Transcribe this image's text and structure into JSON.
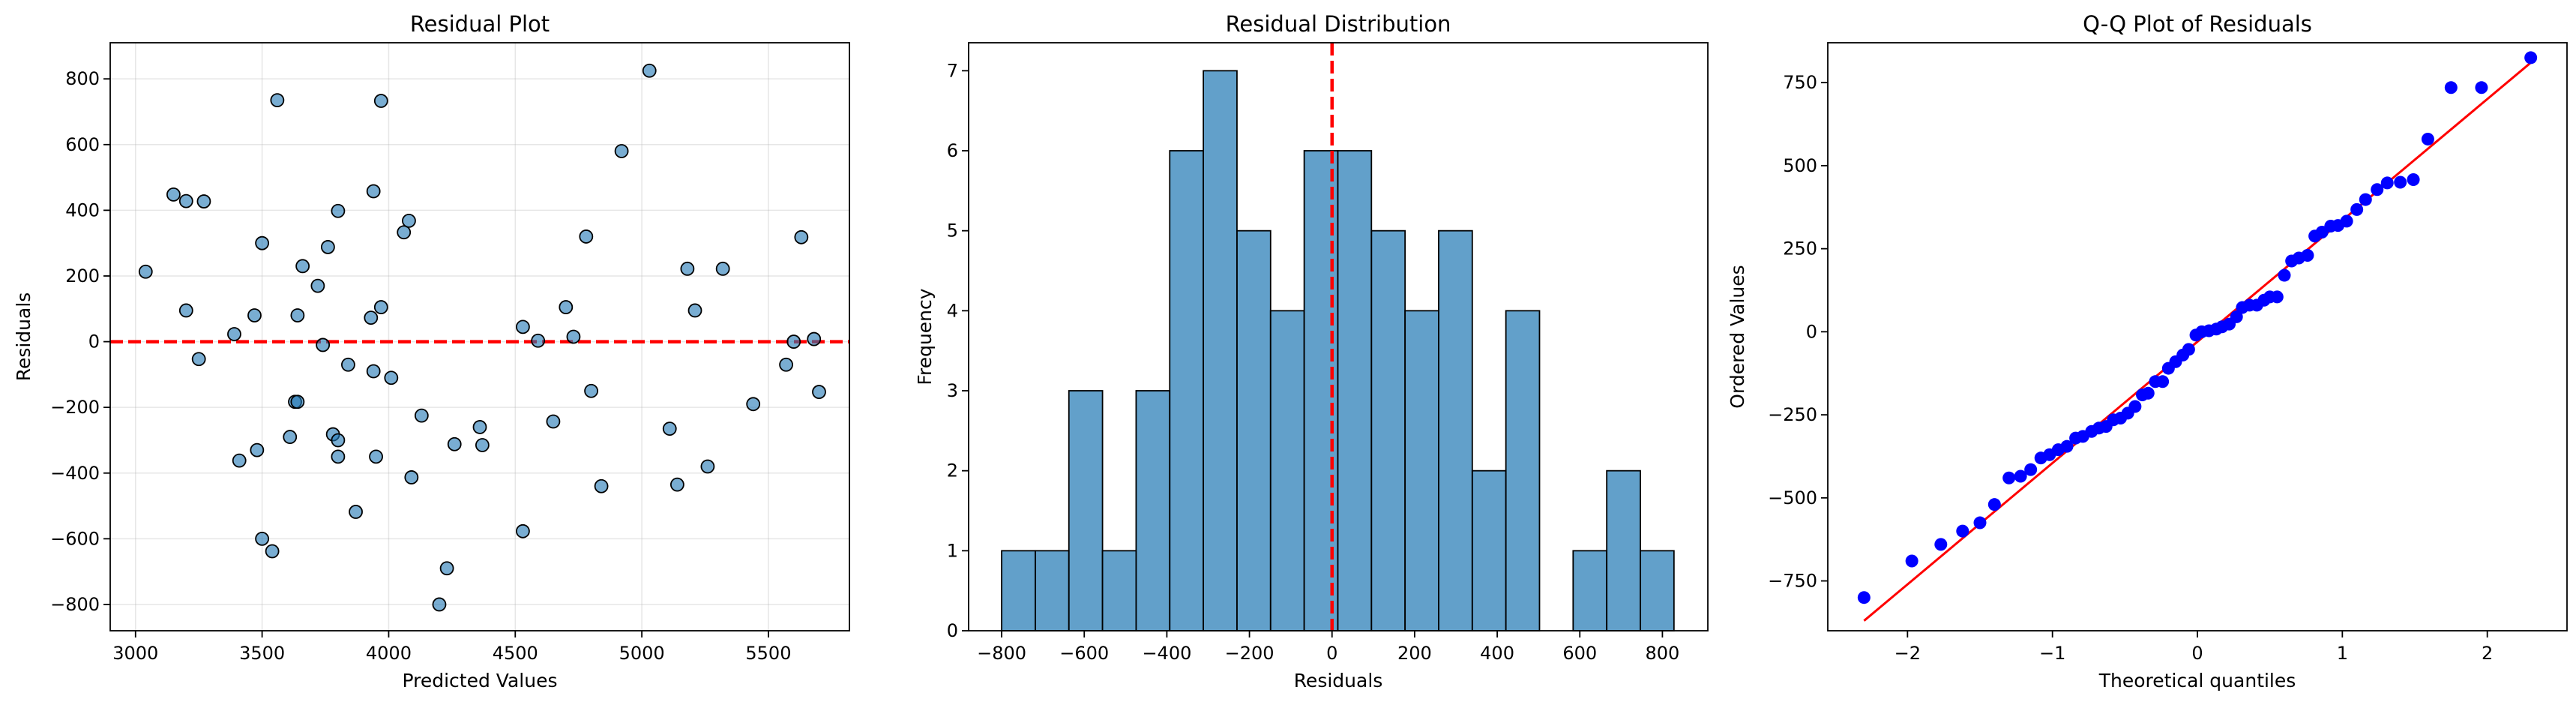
{
  "figure": {
    "background": "#ffffff",
    "point_color": "#1f77b4",
    "bar_color": "#1f77b4",
    "ref_color": "#ff0000",
    "qq_point_color": "#0000ff"
  },
  "chart_data": [
    {
      "type": "scatter",
      "title": "Residual Plot",
      "xlabel": "Predicted Values",
      "ylabel": "Residuals",
      "xlim": [
        2900,
        5820
      ],
      "ylim": [
        -880,
        910
      ],
      "xticks": [
        3000,
        3500,
        4000,
        4500,
        5000,
        5500
      ],
      "yticks": [
        -800,
        -600,
        -400,
        -200,
        0,
        200,
        400,
        600,
        800
      ],
      "grid": true,
      "reference_line": {
        "y": 0,
        "style": "dashed",
        "color": "#ff0000"
      },
      "points": [
        [
          3040,
          213
        ],
        [
          3150,
          448
        ],
        [
          3200,
          428
        ],
        [
          3200,
          95
        ],
        [
          3250,
          -53
        ],
        [
          3270,
          427
        ],
        [
          3390,
          23
        ],
        [
          3410,
          -362
        ],
        [
          3470,
          80
        ],
        [
          3480,
          -330
        ],
        [
          3500,
          300
        ],
        [
          3500,
          -600
        ],
        [
          3540,
          -638
        ],
        [
          3560,
          735
        ],
        [
          3610,
          -290
        ],
        [
          3630,
          -183
        ],
        [
          3640,
          -183
        ],
        [
          3640,
          80
        ],
        [
          3660,
          230
        ],
        [
          3720,
          170
        ],
        [
          3740,
          -10
        ],
        [
          3760,
          288
        ],
        [
          3780,
          -282
        ],
        [
          3800,
          -300
        ],
        [
          3800,
          -350
        ],
        [
          3800,
          398
        ],
        [
          3840,
          -70
        ],
        [
          3870,
          -518
        ],
        [
          3930,
          73
        ],
        [
          3940,
          458
        ],
        [
          3940,
          -90
        ],
        [
          3950,
          -350
        ],
        [
          3970,
          733
        ],
        [
          3970,
          105
        ],
        [
          4010,
          -110
        ],
        [
          4060,
          333
        ],
        [
          4080,
          368
        ],
        [
          4090,
          -413
        ],
        [
          4130,
          -225
        ],
        [
          4200,
          -800
        ],
        [
          4230,
          -690
        ],
        [
          4260,
          -312
        ],
        [
          4360,
          -260
        ],
        [
          4370,
          -315
        ],
        [
          4530,
          45
        ],
        [
          4530,
          -577
        ],
        [
          4590,
          3
        ],
        [
          4650,
          -243
        ],
        [
          4700,
          105
        ],
        [
          4730,
          15
        ],
        [
          4780,
          320
        ],
        [
          4800,
          -150
        ],
        [
          4840,
          -440
        ],
        [
          4920,
          580
        ],
        [
          5030,
          825
        ],
        [
          5110,
          -265
        ],
        [
          5140,
          -435
        ],
        [
          5180,
          222
        ],
        [
          5210,
          95
        ],
        [
          5260,
          -380
        ],
        [
          5320,
          222
        ],
        [
          5440,
          -190
        ],
        [
          5570,
          -70
        ],
        [
          5600,
          0
        ],
        [
          5630,
          318
        ],
        [
          5680,
          8
        ],
        [
          5700,
          -153
        ]
      ]
    },
    {
      "type": "bar",
      "title": "Residual Distribution",
      "xlabel": "Residuals",
      "ylabel": "Frequency",
      "xlim": [
        -880,
        910
      ],
      "ylim": [
        0,
        7.35
      ],
      "xticks": [
        -800,
        -600,
        -400,
        -200,
        0,
        200,
        400,
        600,
        800
      ],
      "yticks": [
        0,
        1,
        2,
        3,
        4,
        5,
        6,
        7
      ],
      "reference_line": {
        "x": 0,
        "style": "dashed",
        "color": "#ff0000"
      },
      "bins": [
        {
          "start": -800,
          "end": -718.6,
          "count": 1
        },
        {
          "start": -718.6,
          "end": -637.2,
          "count": 1
        },
        {
          "start": -637.2,
          "end": -555.8,
          "count": 3
        },
        {
          "start": -555.8,
          "end": -474.4,
          "count": 1
        },
        {
          "start": -474.4,
          "end": -393,
          "count": 3
        },
        {
          "start": -393,
          "end": -311.6,
          "count": 6
        },
        {
          "start": -311.6,
          "end": -230.2,
          "count": 7
        },
        {
          "start": -230.2,
          "end": -148.8,
          "count": 5
        },
        {
          "start": -148.8,
          "end": -67.4,
          "count": 4
        },
        {
          "start": -67.4,
          "end": 14,
          "count": 6
        },
        {
          "start": 14,
          "end": 95.4,
          "count": 6
        },
        {
          "start": 95.4,
          "end": 176.8,
          "count": 5
        },
        {
          "start": 176.8,
          "end": 258.2,
          "count": 4
        },
        {
          "start": 258.2,
          "end": 339.6,
          "count": 5
        },
        {
          "start": 339.6,
          "end": 421,
          "count": 2
        },
        {
          "start": 421,
          "end": 502.4,
          "count": 4
        },
        {
          "start": 502.4,
          "end": 583.8,
          "count": 0
        },
        {
          "start": 583.8,
          "end": 665.2,
          "count": 1
        },
        {
          "start": 665.2,
          "end": 746.6,
          "count": 2
        },
        {
          "start": 746.6,
          "end": 828,
          "count": 1
        }
      ]
    },
    {
      "type": "scatter",
      "title": "Q-Q Plot of Residuals",
      "xlabel": "Theoretical quantiles",
      "ylabel": "Ordered Values",
      "xlim": [
        -2.55,
        2.55
      ],
      "ylim": [
        -900,
        870
      ],
      "xticks": [
        -2,
        -1,
        0,
        1,
        2
      ],
      "yticks": [
        -750,
        -500,
        -250,
        0,
        250,
        500,
        750
      ],
      "fit_line": {
        "x": [
          -2.3,
          2.3
        ],
        "y": [
          -870,
          810
        ],
        "color": "#ff0000"
      },
      "points": [
        [
          -2.3,
          -800
        ],
        [
          -1.97,
          -690
        ],
        [
          -1.77,
          -640
        ],
        [
          -1.62,
          -600
        ],
        [
          -1.5,
          -575
        ],
        [
          -1.4,
          -520
        ],
        [
          -1.3,
          -440
        ],
        [
          -1.22,
          -435
        ],
        [
          -1.15,
          -415
        ],
        [
          -1.08,
          -380
        ],
        [
          -1.02,
          -370
        ],
        [
          -0.96,
          -355
        ],
        [
          -0.9,
          -345
        ],
        [
          -0.84,
          -320
        ],
        [
          -0.79,
          -315
        ],
        [
          -0.73,
          -300
        ],
        [
          -0.68,
          -290
        ],
        [
          -0.63,
          -285
        ],
        [
          -0.58,
          -265
        ],
        [
          -0.53,
          -260
        ],
        [
          -0.48,
          -245
        ],
        [
          -0.43,
          -225
        ],
        [
          -0.38,
          -190
        ],
        [
          -0.34,
          -185
        ],
        [
          -0.29,
          -150
        ],
        [
          -0.24,
          -150
        ],
        [
          -0.2,
          -110
        ],
        [
          -0.15,
          -90
        ],
        [
          -0.1,
          -70
        ],
        [
          -0.06,
          -53
        ],
        [
          -0.01,
          -10
        ],
        [
          0.03,
          0
        ],
        [
          0.08,
          3
        ],
        [
          0.13,
          8
        ],
        [
          0.17,
          15
        ],
        [
          0.22,
          23
        ],
        [
          0.27,
          45
        ],
        [
          0.31,
          73
        ],
        [
          0.36,
          80
        ],
        [
          0.41,
          80
        ],
        [
          0.46,
          95
        ],
        [
          0.5,
          105
        ],
        [
          0.55,
          105
        ],
        [
          0.6,
          170
        ],
        [
          0.65,
          213
        ],
        [
          0.7,
          222
        ],
        [
          0.76,
          230
        ],
        [
          0.81,
          288
        ],
        [
          0.86,
          300
        ],
        [
          0.92,
          318
        ],
        [
          0.97,
          320
        ],
        [
          1.03,
          333
        ],
        [
          1.1,
          368
        ],
        [
          1.16,
          398
        ],
        [
          1.24,
          428
        ],
        [
          1.31,
          448
        ],
        [
          1.4,
          450
        ],
        [
          1.49,
          458
        ],
        [
          1.59,
          580
        ],
        [
          1.75,
          735
        ],
        [
          1.96,
          735
        ],
        [
          2.3,
          825
        ]
      ]
    }
  ]
}
